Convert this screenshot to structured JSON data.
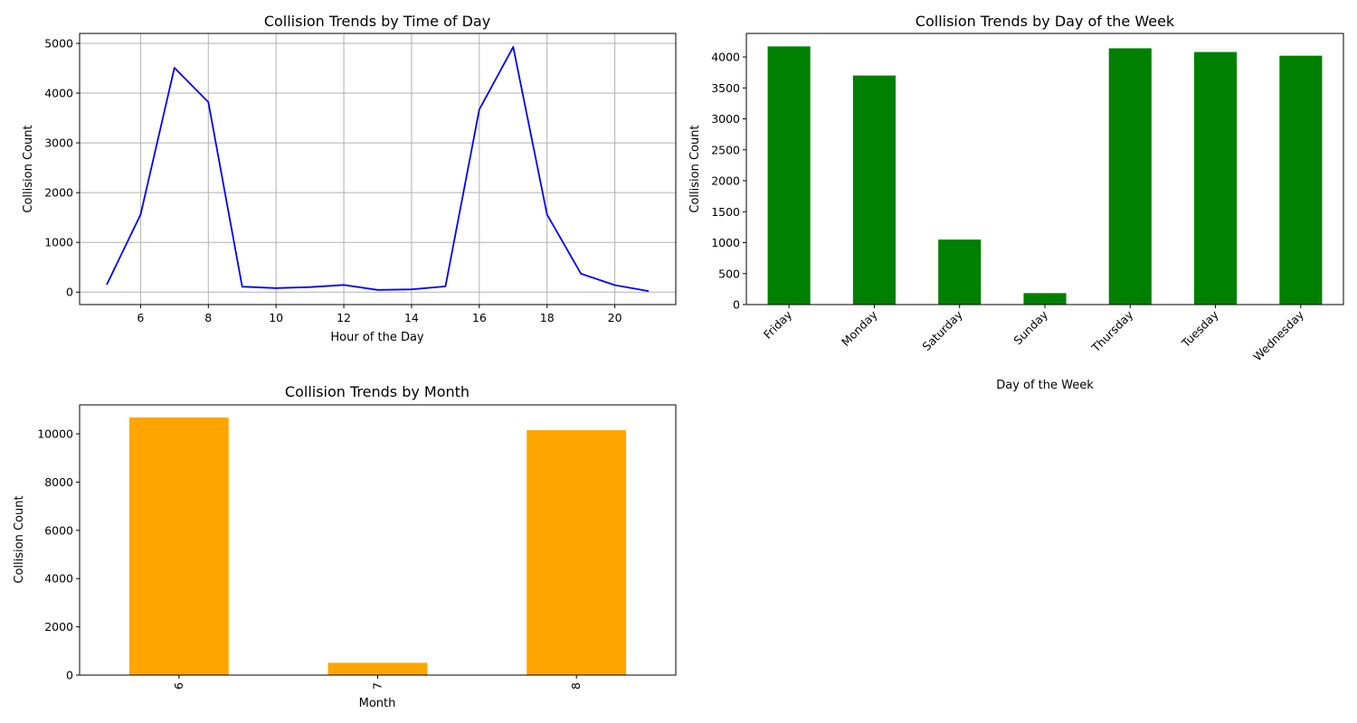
{
  "chart_data": [
    {
      "type": "line",
      "title": "Collision Trends by Time of Day",
      "xlabel": "Hour of the Day",
      "ylabel": "Collision Count",
      "x": [
        5,
        6,
        7,
        8,
        9,
        10,
        11,
        12,
        13,
        14,
        15,
        16,
        17,
        18,
        19,
        20,
        21
      ],
      "values": [
        150,
        1560,
        4510,
        3820,
        110,
        80,
        100,
        145,
        45,
        55,
        115,
        3670,
        4930,
        1560,
        370,
        140,
        20
      ],
      "xticks": [
        6,
        8,
        10,
        12,
        14,
        16,
        18,
        20
      ],
      "yticks": [
        0,
        1000,
        2000,
        3000,
        4000,
        5000
      ],
      "xlim": [
        4.2,
        21.8
      ],
      "ylim": [
        -250,
        5200
      ],
      "grid": true,
      "color": "#0000ff"
    },
    {
      "type": "bar",
      "title": "Collision Trends by Day of the Week",
      "xlabel": "Day of the Week",
      "ylabel": "Collision Count",
      "categories": [
        "Friday",
        "Monday",
        "Saturday",
        "Sunday",
        "Thursday",
        "Tuesday",
        "Wednesday"
      ],
      "values": [
        4170,
        3700,
        1050,
        185,
        4140,
        4080,
        4020
      ],
      "yticks": [
        0,
        500,
        1000,
        1500,
        2000,
        2500,
        3000,
        3500,
        4000
      ],
      "ylim": [
        0,
        4380
      ],
      "grid": false,
      "color": "#008000"
    },
    {
      "type": "bar",
      "title": "Collision Trends by Month",
      "xlabel": "Month",
      "ylabel": "Collision Count",
      "categories": [
        "6",
        "7",
        "8"
      ],
      "values": [
        10680,
        510,
        10150
      ],
      "yticks": [
        0,
        2000,
        4000,
        6000,
        8000,
        10000
      ],
      "ylim": [
        0,
        11200
      ],
      "grid": false,
      "color": "#ffa500"
    }
  ]
}
